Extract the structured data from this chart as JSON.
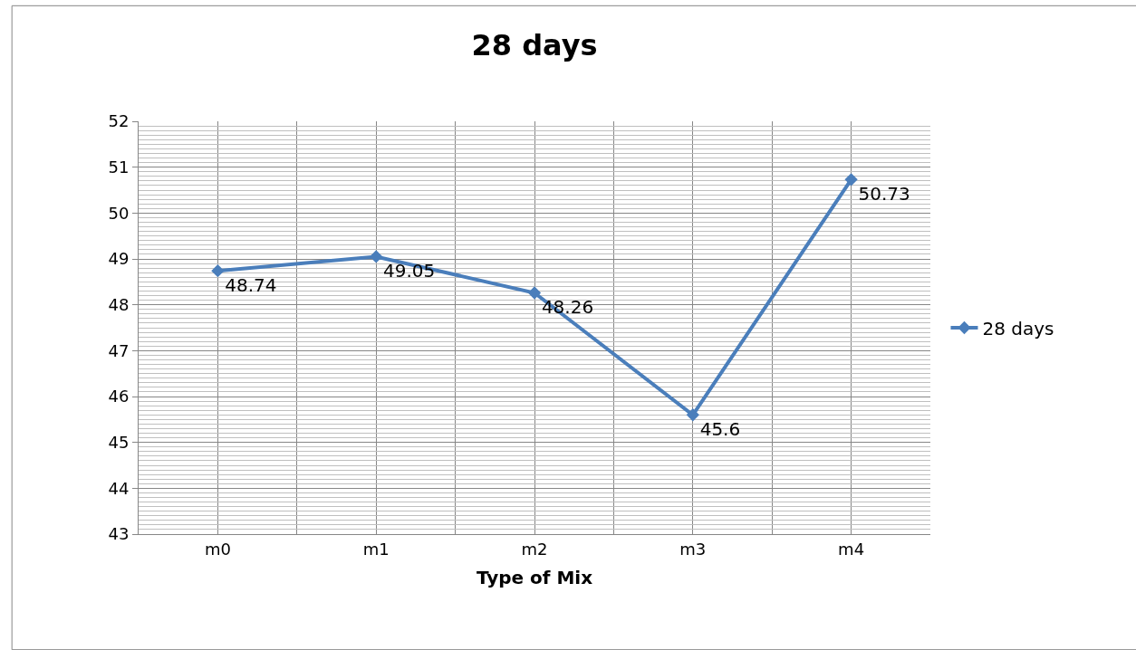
{
  "chart_data": {
    "type": "line",
    "title": "28 days",
    "xlabel": "Type of Mix",
    "categories": [
      "m0",
      "m1",
      "m2",
      "m3",
      "m4"
    ],
    "series": [
      {
        "name": "28 days",
        "color": "#4a7ebb",
        "values": [
          48.74,
          49.05,
          48.26,
          45.6,
          50.73
        ]
      }
    ],
    "ylim": [
      43,
      52
    ],
    "yticks": [
      43,
      44,
      45,
      46,
      47,
      48,
      49,
      50,
      51,
      52
    ],
    "grid": true,
    "legend": "right",
    "marker": "diamond",
    "line_style": "solid",
    "data_labels": true
  }
}
